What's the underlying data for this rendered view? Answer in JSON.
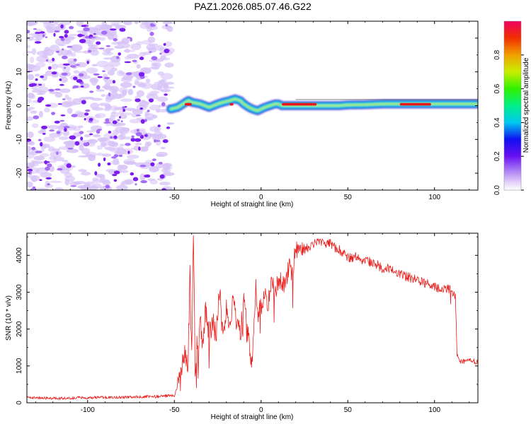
{
  "title": "PAZ1.2026.085.07.46.G22",
  "colors": {
    "snr_line": "#e8201e",
    "noise_light": "#d7c3f7",
    "noise_dark": "#7a1ff0",
    "track_edge": "#2a16d8",
    "track_mid": "#18e0d0",
    "track_core": "#c8f030",
    "track_peak": "#e81818"
  },
  "chart_data": [
    {
      "type": "heatmap",
      "name": "spectrogram",
      "xlabel": "Height of straight line (km)",
      "ylabel": "Frequency (Hz)",
      "xlim": [
        -135,
        125
      ],
      "ylim": [
        -25,
        25
      ],
      "xticks": [
        -100,
        -50,
        0,
        50,
        100
      ],
      "yticks": [
        -20,
        -10,
        0,
        10,
        20
      ],
      "noise_region_x": [
        -135,
        -52
      ],
      "tone_track": {
        "x": [
          -52,
          -48,
          -45,
          -42,
          -40,
          -35,
          -30,
          -25,
          -22,
          -18,
          -15,
          -12,
          -10,
          -7,
          -5,
          -2,
          0,
          2,
          5,
          8,
          10,
          12,
          15,
          20,
          25,
          30,
          35,
          40,
          45,
          50,
          60,
          70,
          80,
          90,
          100,
          110,
          125
        ],
        "freq_hz": [
          -1.0,
          -0.5,
          0.5,
          1.5,
          1.0,
          0.5,
          -0.5,
          0.5,
          1.0,
          1.5,
          2.0,
          1.5,
          0.5,
          -0.5,
          -1.0,
          -1.5,
          -1.0,
          -0.5,
          0.0,
          0.5,
          0.5,
          0.0,
          0.0,
          0.0,
          0.0,
          0.0,
          0.0,
          0.0,
          0.0,
          0.2,
          0.3,
          0.5,
          0.5,
          0.5,
          0.5,
          0.5,
          0.5
        ]
      },
      "colorbar": {
        "label": "Normalized spectral amplitude",
        "range": [
          0.0,
          1.0
        ],
        "ticks": [
          0.0,
          0.2,
          0.4,
          0.6,
          0.8
        ],
        "tick_labels": [
          "0.0",
          "0.2",
          "0.4",
          "0.6",
          "0.8"
        ]
      }
    },
    {
      "type": "line",
      "name": "snr",
      "xlabel": "Height of straight line (km)",
      "ylabel": "SNR (10 * v/v)",
      "xlim": [
        -135,
        125
      ],
      "ylim": [
        0,
        4600
      ],
      "xticks": [
        -100,
        -50,
        0,
        50,
        100
      ],
      "yticks": [
        0,
        1000,
        2000,
        3000,
        4000
      ],
      "series": [
        {
          "name": "SNR",
          "x": [
            -135,
            -120,
            -100,
            -80,
            -60,
            -50,
            -46,
            -44,
            -43,
            -42,
            -41,
            -40,
            -39,
            -38,
            -37,
            -36,
            -35,
            -34,
            -32,
            -30,
            -28,
            -26,
            -24,
            -22,
            -20,
            -18,
            -16,
            -14,
            -12,
            -10,
            -8,
            -6,
            -5,
            -4,
            -3,
            -2,
            0,
            2,
            4,
            6,
            8,
            10,
            12,
            14,
            16,
            18,
            20,
            25,
            30,
            35,
            40,
            45,
            50,
            55,
            60,
            65,
            70,
            75,
            80,
            85,
            90,
            95,
            100,
            105,
            110,
            111,
            112,
            113,
            115,
            120,
            125
          ],
          "y": [
            150,
            120,
            140,
            150,
            170,
            200,
            700,
            1500,
            1000,
            1200,
            3850,
            1200,
            4620,
            900,
            1700,
            1300,
            2300,
            1500,
            2600,
            1800,
            2200,
            1800,
            3100,
            1700,
            2600,
            1900,
            2900,
            2200,
            1800,
            2900,
            2000,
            1500,
            1000,
            2200,
            3200,
            2400,
            2600,
            2900,
            2700,
            3300,
            3000,
            3300,
            3300,
            3100,
            3700,
            3500,
            4200,
            4150,
            4300,
            4350,
            4300,
            4150,
            3950,
            3950,
            3850,
            3800,
            3650,
            3650,
            3500,
            3400,
            3350,
            3250,
            3150,
            3100,
            3050,
            2950,
            2900,
            1300,
            1100,
            1150,
            1100
          ]
        }
      ]
    }
  ]
}
